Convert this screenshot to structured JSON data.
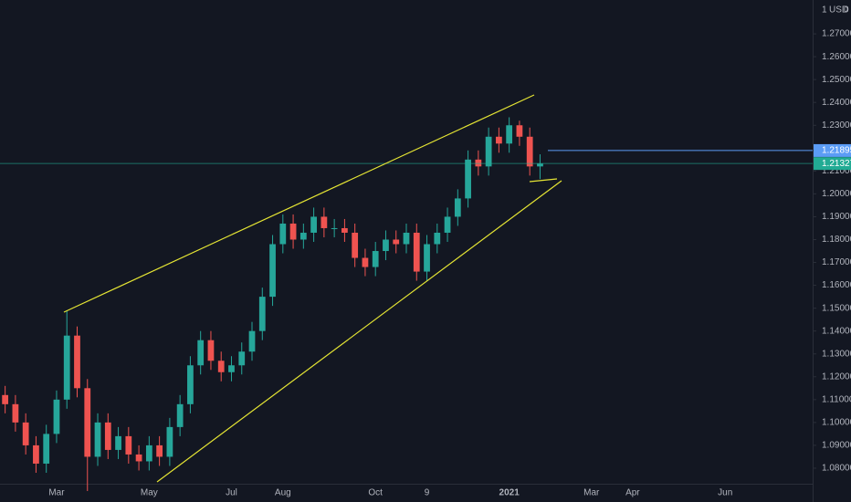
{
  "chart_data": {
    "type": "candlestick",
    "currency": "USD",
    "currency_multiplier": "1",
    "scale_mode": "0",
    "up_color": "#26a69a",
    "down_color": "#ef5350",
    "categories": [
      null,
      null,
      null,
      null,
      null,
      "Mar",
      null,
      null,
      null,
      null,
      null,
      null,
      null,
      null,
      "May",
      null,
      null,
      null,
      null,
      null,
      null,
      null,
      "Jul",
      null,
      null,
      null,
      null,
      "Aug",
      null,
      null,
      null,
      null,
      null,
      null,
      null,
      null,
      "Oct",
      null,
      null,
      null,
      null,
      "9",
      null,
      null,
      null,
      null,
      null,
      null,
      null,
      "2021",
      null,
      null,
      null,
      null,
      null,
      null,
      null,
      "Mar",
      null,
      null,
      null,
      "Apr",
      null,
      null,
      null,
      null,
      null,
      null,
      null,
      null,
      "Jun",
      null,
      null,
      null,
      null,
      null,
      null,
      null,
      null
    ],
    "open": [
      1.112,
      1.108,
      1.1,
      1.09,
      1.082,
      1.095,
      1.11,
      1.138,
      1.115,
      1.085,
      1.1,
      1.088,
      1.094,
      1.086,
      1.083,
      1.09,
      1.085,
      1.098,
      1.108,
      1.125,
      1.136,
      1.127,
      1.122,
      1.125,
      1.131,
      1.14,
      1.155,
      1.178,
      1.187,
      1.18,
      1.183,
      1.19,
      1.185,
      1.185,
      1.183,
      1.172,
      1.168,
      1.175,
      1.18,
      1.178,
      1.183,
      1.166,
      1.178,
      1.183,
      1.19,
      1.198,
      1.215,
      1.212,
      1.225,
      1.222,
      1.23,
      1.225,
      1.212,
      null,
      null,
      null,
      null,
      null,
      null,
      null,
      null,
      null,
      null,
      null,
      null,
      null,
      null,
      null,
      null,
      null,
      null,
      null,
      null,
      null,
      null,
      null,
      null,
      null,
      null
    ],
    "high": [
      1.116,
      1.112,
      1.104,
      1.094,
      1.099,
      1.114,
      1.149,
      1.142,
      1.119,
      1.104,
      1.104,
      1.098,
      1.098,
      1.09,
      1.094,
      1.094,
      1.102,
      1.112,
      1.129,
      1.14,
      1.14,
      1.131,
      1.129,
      1.135,
      1.144,
      1.159,
      1.182,
      1.191,
      1.191,
      1.187,
      1.194,
      1.194,
      1.189,
      1.189,
      1.187,
      1.176,
      1.179,
      1.184,
      1.184,
      1.187,
      1.187,
      1.182,
      1.187,
      1.194,
      1.202,
      1.219,
      1.219,
      1.229,
      1.229,
      1.2335,
      1.232,
      1.229,
      1.2173,
      null,
      null,
      null,
      null,
      null,
      null,
      null,
      null,
      null,
      null,
      null,
      null,
      null,
      null,
      null,
      null,
      null,
      null,
      null,
      null,
      null,
      null,
      null,
      null,
      null,
      null
    ],
    "low": [
      1.104,
      1.096,
      1.086,
      1.078,
      1.078,
      1.091,
      1.106,
      1.111,
      1.07,
      1.081,
      1.084,
      1.084,
      1.082,
      1.079,
      1.079,
      1.081,
      1.081,
      1.094,
      1.104,
      1.121,
      1.123,
      1.118,
      1.118,
      1.121,
      1.127,
      1.136,
      1.151,
      1.174,
      1.176,
      1.176,
      1.179,
      1.181,
      1.181,
      1.179,
      1.168,
      1.164,
      1.164,
      1.171,
      1.174,
      1.174,
      1.162,
      1.162,
      1.174,
      1.179,
      1.186,
      1.194,
      1.208,
      1.208,
      1.218,
      1.218,
      1.221,
      1.208,
      1.2065,
      null,
      null,
      null,
      null,
      null,
      null,
      null,
      null,
      null,
      null,
      null,
      null,
      null,
      null,
      null,
      null,
      null,
      null,
      null,
      null,
      null,
      null,
      null,
      null,
      null,
      null
    ],
    "close": [
      1.108,
      1.1,
      1.09,
      1.082,
      1.095,
      1.11,
      1.138,
      1.115,
      1.085,
      1.1,
      1.088,
      1.094,
      1.086,
      1.083,
      1.09,
      1.085,
      1.098,
      1.108,
      1.125,
      1.136,
      1.127,
      1.122,
      1.125,
      1.131,
      1.14,
      1.155,
      1.178,
      1.187,
      1.18,
      1.183,
      1.19,
      1.185,
      1.185,
      1.183,
      1.172,
      1.168,
      1.175,
      1.18,
      1.178,
      1.183,
      1.166,
      1.178,
      1.183,
      1.19,
      1.198,
      1.215,
      1.212,
      1.225,
      1.222,
      1.23,
      1.225,
      1.212,
      1.21327,
      null,
      null,
      null,
      null,
      null,
      null,
      null,
      null,
      null,
      null,
      null,
      null,
      null,
      null,
      null,
      null,
      null,
      null,
      null,
      null,
      null,
      null,
      null,
      null,
      null,
      null
    ],
    "ylim": [
      1.0732,
      1.2848
    ],
    "yticks": [
      {
        "value": 1.08,
        "label": "1.08000"
      },
      {
        "value": 1.09,
        "label": "1.09000"
      },
      {
        "value": 1.1,
        "label": "1.10000"
      },
      {
        "value": 1.11,
        "label": "1.11000"
      },
      {
        "value": 1.12,
        "label": "1.12000"
      },
      {
        "value": 1.13,
        "label": "1.13000"
      },
      {
        "value": 1.14,
        "label": "1.14000"
      },
      {
        "value": 1.15,
        "label": "1.15000"
      },
      {
        "value": 1.16,
        "label": "1.16000"
      },
      {
        "value": 1.17,
        "label": "1.17000"
      },
      {
        "value": 1.18,
        "label": "1.18000"
      },
      {
        "value": 1.19,
        "label": "1.19000"
      },
      {
        "value": 1.2,
        "label": "1.20000"
      },
      {
        "value": 1.21,
        "label": "1.21000"
      },
      {
        "value": 1.22,
        "label": "1.22000"
      },
      {
        "value": 1.23,
        "label": "1.23000"
      },
      {
        "value": 1.24,
        "label": "1.24000"
      },
      {
        "value": 1.25,
        "label": "1.25000"
      },
      {
        "value": 1.26,
        "label": "1.26000"
      },
      {
        "value": 1.27,
        "label": "1.27000"
      }
    ],
    "grid": false,
    "price_lines": [
      {
        "value": 1.21895,
        "color": "#5b9cf6"
      },
      {
        "value": 1.21327,
        "color": "#22ab94"
      }
    ]
  }
}
